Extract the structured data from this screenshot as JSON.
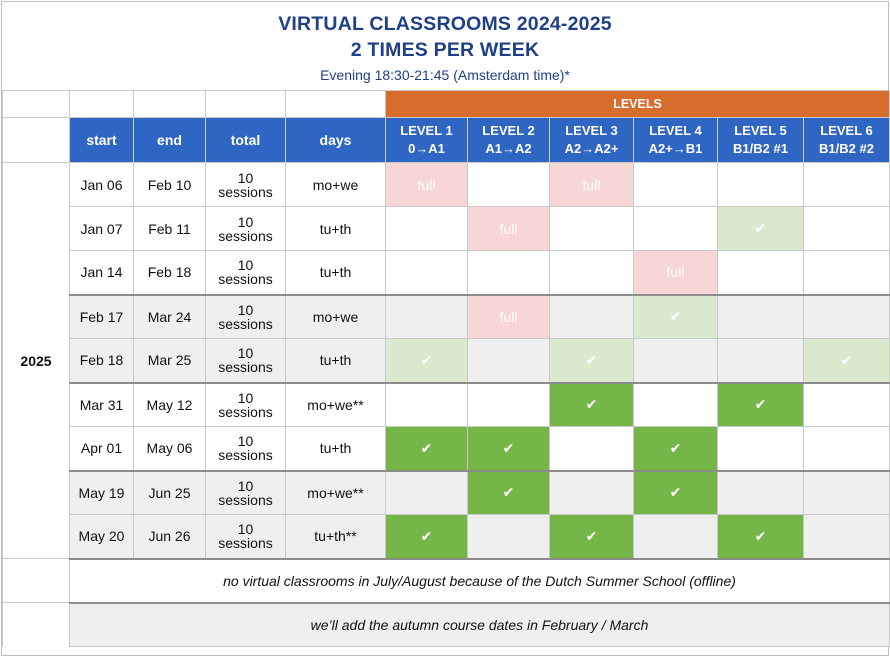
{
  "title_line1": "VIRTUAL CLASSROOMS 2024-2025",
  "title_line2": "2 TIMES PER WEEK",
  "subtitle": "Evening 18:30-21:45 (Amsterdam time)*",
  "levels_banner": "LEVELS",
  "year": "2025",
  "headers": {
    "start": "start",
    "end": "end",
    "total": "total",
    "days": "days",
    "levels": [
      {
        "line1": "LEVEL 1",
        "line2": "0→A1"
      },
      {
        "line1": "LEVEL 2",
        "line2": "A1→A2"
      },
      {
        "line1": "LEVEL 3",
        "line2": "A2→A2+"
      },
      {
        "line1": "LEVEL 4",
        "line2": "A2+→B1"
      },
      {
        "line1": "LEVEL 5",
        "line2": "B1/B2 #1"
      },
      {
        "line1": "LEVEL 6",
        "line2": "B1/B2 #2"
      }
    ]
  },
  "status_labels": {
    "full": "full",
    "available": "✔"
  },
  "rows": [
    {
      "start": "Jan 06",
      "end": "Feb 10",
      "total_num": "10",
      "total_unit": "sessions",
      "days": "mo+we",
      "levels": [
        "full",
        "",
        "full",
        "",
        "",
        ""
      ]
    },
    {
      "start": "Jan 07",
      "end": "Feb 11",
      "total_num": "10",
      "total_unit": "sessions",
      "days": "tu+th",
      "levels": [
        "",
        "full",
        "",
        "",
        "light",
        ""
      ]
    },
    {
      "start": "Jan 14",
      "end": "Feb 18",
      "total_num": "10",
      "total_unit": "sessions",
      "days": "tu+th",
      "levels": [
        "",
        "",
        "",
        "full",
        "",
        ""
      ]
    },
    {
      "start": "Feb 17",
      "end": "Mar 24",
      "total_num": "10",
      "total_unit": "sessions",
      "days": "mo+we",
      "levels": [
        "",
        "full",
        "",
        "light",
        "",
        ""
      ]
    },
    {
      "start": "Feb 18",
      "end": "Mar 25",
      "total_num": "10",
      "total_unit": "sessions",
      "days": "tu+th",
      "levels": [
        "light",
        "",
        "light",
        "",
        "",
        "light"
      ]
    },
    {
      "start": "Mar 31",
      "end": "May 12",
      "total_num": "10",
      "total_unit": "sessions",
      "days": "mo+we**",
      "levels": [
        "",
        "",
        "dark",
        "",
        "dark",
        ""
      ]
    },
    {
      "start": "Apr 01",
      "end": "May 06",
      "total_num": "10",
      "total_unit": "sessions",
      "days": "tu+th",
      "levels": [
        "dark",
        "dark",
        "",
        "dark",
        "",
        ""
      ]
    },
    {
      "start": "May 19",
      "end": "Jun 25",
      "total_num": "10",
      "total_unit": "sessions",
      "days": "mo+we**",
      "levels": [
        "",
        "dark",
        "",
        "dark",
        "",
        ""
      ]
    },
    {
      "start": "May 20",
      "end": "Jun 26",
      "total_num": "10",
      "total_unit": "sessions",
      "days": "tu+th**",
      "levels": [
        "dark",
        "",
        "dark",
        "",
        "dark",
        ""
      ]
    }
  ],
  "notes": [
    "no virtual classrooms in July/August because of the Dutch Summer School (offline)",
    "we’ll add the autumn course dates in February / March"
  ],
  "colors": {
    "title": "#1f3f86",
    "header_blue": "#2f66c4",
    "levels_orange": "#d66d2a",
    "full_pink": "#f7d6d6",
    "available_light_green": "#dbe9cf",
    "available_dark_green": "#76b548",
    "row_gray": "#efefef"
  }
}
